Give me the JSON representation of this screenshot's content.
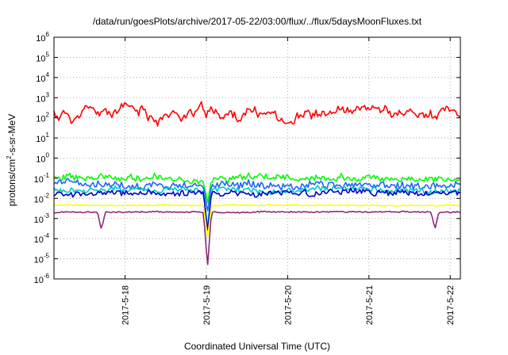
{
  "chart_data": {
    "type": "line",
    "title": "/data/run/goesPlots/archive/2017-05-22/03:00/flux/../flux/5daysMoonFluxes.txt",
    "xlabel": "Coordinated Universal Time (UTC)",
    "ylabel_parts": [
      "protons/cm",
      "2",
      "-s-sr-MeV"
    ],
    "y_scale": "log",
    "ylim": [
      1e-06,
      1000000.0
    ],
    "xlim": [
      "2017-05-17T03:00",
      "2017-05-22T03:00"
    ],
    "grid": true,
    "legend": "none",
    "y_ticks": [
      {
        "value": 1e-06,
        "base": "10",
        "exp": "-6"
      },
      {
        "value": 1e-05,
        "base": "10",
        "exp": "-5"
      },
      {
        "value": 0.0001,
        "base": "10",
        "exp": "-4"
      },
      {
        "value": 0.001,
        "base": "10",
        "exp": "-3"
      },
      {
        "value": 0.01,
        "base": "10",
        "exp": "-2"
      },
      {
        "value": 0.1,
        "base": "10",
        "exp": "-1"
      },
      {
        "value": 1,
        "base": "10",
        "exp": "0"
      },
      {
        "value": 10,
        "base": "10",
        "exp": "1"
      },
      {
        "value": 100,
        "base": "10",
        "exp": "2"
      },
      {
        "value": 1000,
        "base": "10",
        "exp": "3"
      },
      {
        "value": 10000,
        "base": "10",
        "exp": "4"
      },
      {
        "value": 100000,
        "base": "10",
        "exp": "5"
      },
      {
        "value": 1000000,
        "base": "10",
        "exp": "6"
      }
    ],
    "x_ticks": [
      {
        "value": "2017-05-18T00:00",
        "label": "2017-5-18"
      },
      {
        "value": "2017-05-19T00:00",
        "label": "2017-5-19"
      },
      {
        "value": "2017-05-20T00:00",
        "label": "2017-5-20"
      },
      {
        "value": "2017-05-21T00:00",
        "label": "2017-5-21"
      },
      {
        "value": "2017-05-22T00:00",
        "label": "2017-5-22"
      }
    ],
    "series": [
      {
        "color": "#ff0000",
        "base": 150,
        "noise": 0.12,
        "swing": 0.45,
        "seed": 11,
        "dips": []
      },
      {
        "color": "#00ff00",
        "base": 0.1,
        "noise": 0.14,
        "swing": 0.12,
        "seed": 23,
        "dips": [
          {
            "t": "2017-05-19T00:20",
            "v": 0.005
          }
        ]
      },
      {
        "color": "#1e64ff",
        "base": 0.045,
        "noise": 0.16,
        "swing": 0.12,
        "seed": 37,
        "dips": [
          {
            "t": "2017-05-19T00:20",
            "v": 0.002
          }
        ]
      },
      {
        "color": "#00c8c8",
        "base": 0.025,
        "noise": 0.12,
        "swing": 0.1,
        "seed": 41,
        "dips": [
          {
            "t": "2017-05-19T00:20",
            "v": 0.0003
          }
        ]
      },
      {
        "color": "#0000c8",
        "base": 0.018,
        "noise": 0.12,
        "swing": 0.1,
        "seed": 53,
        "dips": [
          {
            "t": "2017-05-19T00:20",
            "v": 0.0002
          }
        ]
      },
      {
        "color": "#ffff00",
        "base": 0.0045,
        "noise": 0.02,
        "swing": 0.02,
        "seed": 61,
        "dips": [
          {
            "t": "2017-05-19T00:20",
            "v": 0.0001
          }
        ]
      },
      {
        "color": "#8c2a78",
        "base": 0.0021,
        "noise": 0.03,
        "swing": 0.02,
        "seed": 71,
        "dips": [
          {
            "t": "2017-05-17T17:00",
            "v": 0.00028
          },
          {
            "t": "2017-05-19T00:20",
            "v": 3.5e-06
          },
          {
            "t": "2017-05-21T19:30",
            "v": 0.0003
          }
        ]
      }
    ]
  }
}
